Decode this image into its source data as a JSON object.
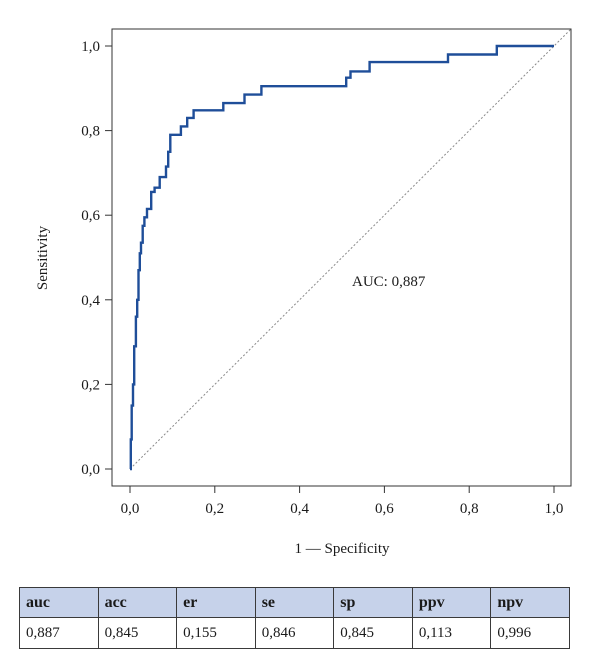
{
  "chart_data": {
    "type": "line",
    "title": "",
    "xlabel": "1 — Specificity",
    "ylabel": "Sensitivity",
    "xlim": [
      0,
      1
    ],
    "ylim": [
      0,
      1
    ],
    "xticks": [
      "0,0",
      "0,2",
      "0,4",
      "0,6",
      "0,8",
      "1,0"
    ],
    "yticks": [
      "0,0",
      "0,2",
      "0,4",
      "0,6",
      "0,8",
      "1,0"
    ],
    "grid": false,
    "annotation": "AUC: 0,887",
    "series": [
      {
        "style": "solid",
        "color": "#1f4e99",
        "x": [
          0,
          0.002,
          0.002,
          0.004,
          0.004,
          0.007,
          0.007,
          0.01,
          0.01,
          0.014,
          0.014,
          0.017,
          0.017,
          0.02,
          0.02,
          0.023,
          0.023,
          0.026,
          0.026,
          0.03,
          0.03,
          0.034,
          0.034,
          0.04,
          0.04,
          0.05,
          0.05,
          0.058,
          0.058,
          0.07,
          0.07,
          0.085,
          0.085,
          0.09,
          0.09,
          0.095,
          0.095,
          0.1,
          0.1,
          0.12,
          0.12,
          0.135,
          0.135,
          0.15,
          0.15,
          0.22,
          0.22,
          0.27,
          0.27,
          0.31,
          0.31,
          0.51,
          0.51,
          0.52,
          0.52,
          0.565,
          0.565,
          0.75,
          0.75,
          0.865,
          0.865,
          1.0
        ],
        "y": [
          0,
          0,
          0.07,
          0.07,
          0.15,
          0.15,
          0.2,
          0.2,
          0.29,
          0.29,
          0.36,
          0.36,
          0.4,
          0.4,
          0.47,
          0.47,
          0.51,
          0.51,
          0.535,
          0.535,
          0.575,
          0.575,
          0.595,
          0.595,
          0.615,
          0.615,
          0.655,
          0.655,
          0.665,
          0.665,
          0.69,
          0.69,
          0.715,
          0.715,
          0.75,
          0.75,
          0.79,
          0.79,
          0.79,
          0.79,
          0.81,
          0.81,
          0.83,
          0.83,
          0.848,
          0.848,
          0.865,
          0.865,
          0.885,
          0.885,
          0.905,
          0.905,
          0.925,
          0.925,
          0.94,
          0.94,
          0.962,
          0.962,
          0.98,
          0.98,
          1.0,
          1.0
        ]
      },
      {
        "style": "dotted",
        "color": "#888888",
        "x": [
          0,
          1
        ],
        "y": [
          0,
          1
        ]
      }
    ]
  },
  "table": {
    "headers": [
      "auc",
      "acc",
      "er",
      "se",
      "sp",
      "ppv",
      "npv"
    ],
    "values": [
      "0,887",
      "0,845",
      "0,155",
      "0,846",
      "0,845",
      "0,113",
      "0,996"
    ]
  }
}
